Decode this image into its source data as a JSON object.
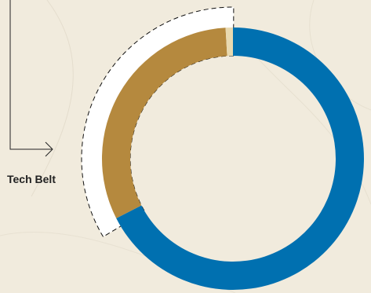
{
  "chart_data": {
    "type": "pie",
    "variant": "donut",
    "categories": [
      "",
      "",
      ""
    ],
    "values": [
      67.5,
      31.6,
      0.9
    ],
    "colors": [
      "#0070b0",
      "#b5893e",
      "#e8d9b0"
    ],
    "title": "",
    "legend": "none",
    "start_angle_deg": 0,
    "direction": "clockwise",
    "highlight_index": 1,
    "annotations": [
      {
        "target_index": 1,
        "text": "Tech Belt"
      }
    ]
  },
  "palette": {
    "background": "#f1ebdd",
    "callout_fill": "#ffffff",
    "callout_stroke": "#111111",
    "text": "#222222"
  }
}
